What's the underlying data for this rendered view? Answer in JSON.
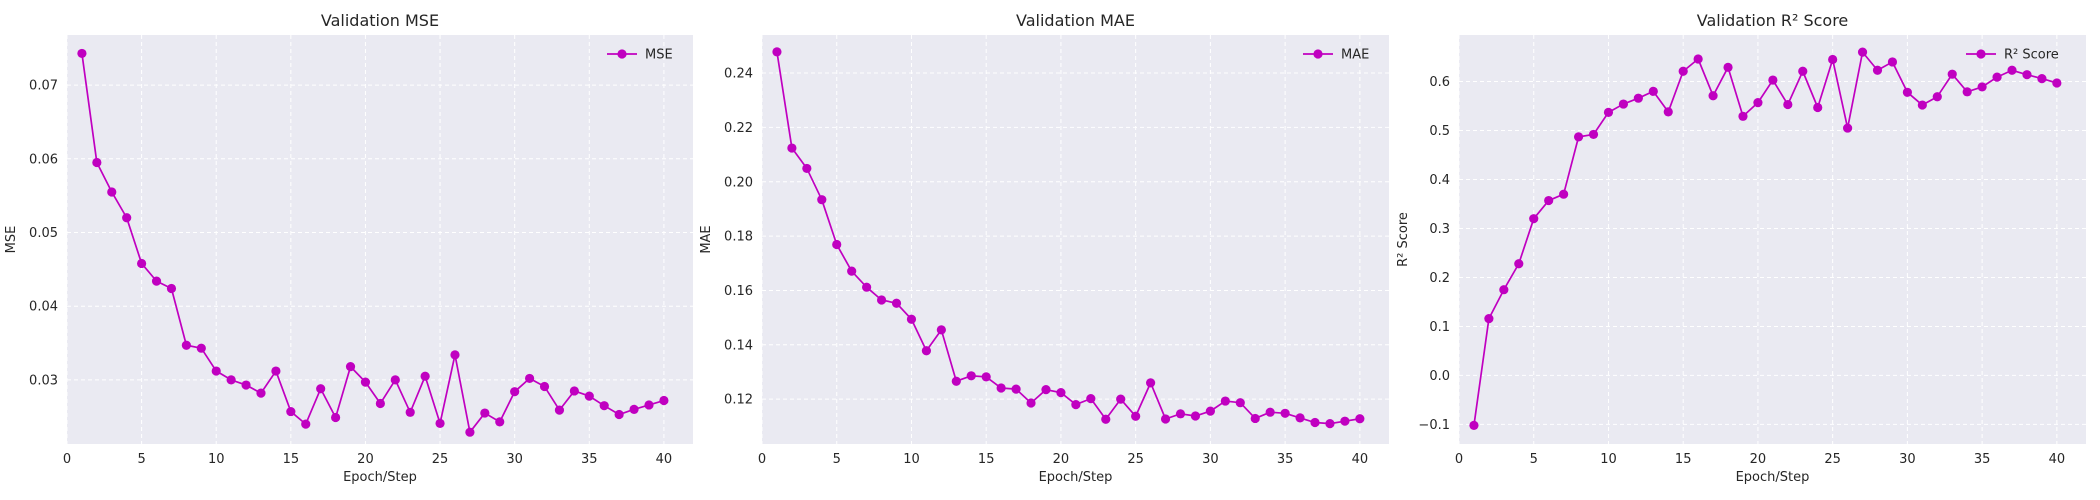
{
  "colors": {
    "series": "#c000c0",
    "plot_bg": "#eaeaf2",
    "grid": "#ffffff"
  },
  "chart_data": [
    {
      "type": "line",
      "title": "Validation MSE",
      "xlabel": "Epoch/Step",
      "ylabel": "MSE",
      "grid": true,
      "legend_position": "top-right",
      "xlim": [
        0,
        41.95
      ],
      "ylim": [
        0.0213,
        0.0768
      ],
      "xticks": [
        0,
        5,
        10,
        15,
        20,
        25,
        30,
        35,
        40
      ],
      "xtick_labels": [
        "0",
        "5",
        "10",
        "15",
        "20",
        "25",
        "30",
        "35",
        "40"
      ],
      "yticks": [
        0.03,
        0.04,
        0.05,
        0.06,
        0.07
      ],
      "ytick_labels": [
        "0.03",
        "0.04",
        "0.05",
        "0.06",
        "0.07"
      ],
      "x": [
        1,
        2,
        3,
        4,
        5,
        6,
        7,
        8,
        9,
        10,
        11,
        12,
        13,
        14,
        15,
        16,
        17,
        18,
        19,
        20,
        21,
        22,
        23,
        24,
        25,
        26,
        27,
        28,
        29,
        30,
        31,
        32,
        33,
        34,
        35,
        36,
        37,
        38,
        39,
        40
      ],
      "series": [
        {
          "name": "MSE",
          "values": [
            0.0743,
            0.0595,
            0.0555,
            0.052,
            0.0458,
            0.0434,
            0.0424,
            0.0347,
            0.0343,
            0.0312,
            0.03,
            0.0293,
            0.0282,
            0.0312,
            0.0257,
            0.024,
            0.0288,
            0.0249,
            0.0318,
            0.0297,
            0.0268,
            0.03,
            0.0256,
            0.0305,
            0.0241,
            0.0334,
            0.0229,
            0.0255,
            0.0243,
            0.0284,
            0.0302,
            0.0291,
            0.0259,
            0.0285,
            0.0278,
            0.0265,
            0.0253,
            0.026,
            0.0266,
            0.0272
          ]
        }
      ]
    },
    {
      "type": "line",
      "title": "Validation MAE",
      "xlabel": "Epoch/Step",
      "ylabel": "MAE",
      "grid": true,
      "legend_position": "top-right",
      "xlim": [
        0,
        41.95
      ],
      "ylim": [
        0.1035,
        0.254
      ],
      "xticks": [
        0,
        5,
        10,
        15,
        20,
        25,
        30,
        35,
        40
      ],
      "xtick_labels": [
        "0",
        "5",
        "10",
        "15",
        "20",
        "25",
        "30",
        "35",
        "40"
      ],
      "yticks": [
        0.12,
        0.14,
        0.16,
        0.18,
        0.2,
        0.22,
        0.24
      ],
      "ytick_labels": [
        "0.12",
        "0.14",
        "0.16",
        "0.18",
        "0.20",
        "0.22",
        "0.24"
      ],
      "x": [
        1,
        2,
        3,
        4,
        5,
        6,
        7,
        8,
        9,
        10,
        11,
        12,
        13,
        14,
        15,
        16,
        17,
        18,
        19,
        20,
        21,
        22,
        23,
        24,
        25,
        26,
        27,
        28,
        29,
        30,
        31,
        32,
        33,
        34,
        35,
        36,
        37,
        38,
        39,
        40
      ],
      "series": [
        {
          "name": "MAE",
          "values": [
            0.2478,
            0.2124,
            0.2049,
            0.1934,
            0.1769,
            0.1671,
            0.1612,
            0.1565,
            0.1553,
            0.1494,
            0.1378,
            0.1455,
            0.1266,
            0.1286,
            0.1282,
            0.1241,
            0.1237,
            0.1186,
            0.1235,
            0.1224,
            0.118,
            0.1202,
            0.1126,
            0.12,
            0.1137,
            0.126,
            0.1127,
            0.1146,
            0.1138,
            0.1156,
            0.1193,
            0.1187,
            0.1129,
            0.1152,
            0.1148,
            0.1131,
            0.1114,
            0.111,
            0.1119,
            0.1128
          ]
        }
      ]
    },
    {
      "type": "line",
      "title": "Validation R² Score",
      "xlabel": "Epoch/Step",
      "ylabel": "R² Score",
      "grid": true,
      "legend_position": "top-right",
      "xlim": [
        0,
        41.95
      ],
      "ylim": [
        -0.14,
        0.695
      ],
      "xticks": [
        0,
        5,
        10,
        15,
        20,
        25,
        30,
        35,
        40
      ],
      "xtick_labels": [
        "0",
        "5",
        "10",
        "15",
        "20",
        "25",
        "30",
        "35",
        "40"
      ],
      "yticks": [
        -0.1,
        0.0,
        0.1,
        0.2,
        0.3,
        0.4,
        0.5,
        0.6
      ],
      "ytick_labels": [
        "−0.1",
        "0.0",
        "0.1",
        "0.2",
        "0.3",
        "0.4",
        "0.5",
        "0.6"
      ],
      "x": [
        1,
        2,
        3,
        4,
        5,
        6,
        7,
        8,
        9,
        10,
        11,
        12,
        13,
        14,
        15,
        16,
        17,
        18,
        19,
        20,
        21,
        22,
        23,
        24,
        25,
        26,
        27,
        28,
        29,
        30,
        31,
        32,
        33,
        34,
        35,
        36,
        37,
        38,
        39,
        40
      ],
      "series": [
        {
          "name": "R² Score",
          "values": [
            -0.102,
            0.116,
            0.175,
            0.228,
            0.32,
            0.357,
            0.37,
            0.487,
            0.492,
            0.537,
            0.554,
            0.566,
            0.58,
            0.538,
            0.621,
            0.646,
            0.571,
            0.629,
            0.529,
            0.557,
            0.603,
            0.553,
            0.621,
            0.547,
            0.645,
            0.505,
            0.66,
            0.623,
            0.64,
            0.578,
            0.552,
            0.569,
            0.615,
            0.579,
            0.589,
            0.609,
            0.623,
            0.614,
            0.606,
            0.597
          ]
        }
      ]
    }
  ]
}
